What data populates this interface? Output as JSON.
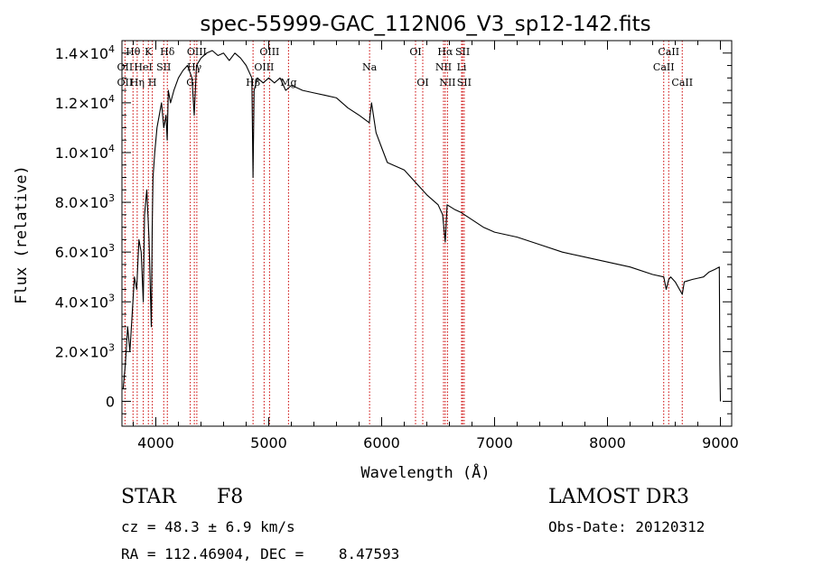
{
  "chart_data": {
    "type": "line",
    "title": "spec-55999-GAC_112N06_V3_sp12-142.fits",
    "xlabel": "Wavelength (Å)",
    "ylabel": "Flux (relative)",
    "xlim": [
      3700,
      9100
    ],
    "ylim": [
      -1000,
      14500
    ],
    "xticks": [
      {
        "value": 4000,
        "label": "4000"
      },
      {
        "value": 5000,
        "label": "5000"
      },
      {
        "value": 6000,
        "label": "6000"
      },
      {
        "value": 7000,
        "label": "7000"
      },
      {
        "value": 8000,
        "label": "8000"
      },
      {
        "value": 9000,
        "label": "9000"
      }
    ],
    "yticks": [
      {
        "value": 0,
        "mantissa": "0",
        "exponent": ""
      },
      {
        "value": 2000,
        "mantissa": "2.0×10",
        "exponent": "3"
      },
      {
        "value": 4000,
        "mantissa": "4.0×10",
        "exponent": "3"
      },
      {
        "value": 6000,
        "mantissa": "6.0×10",
        "exponent": "3"
      },
      {
        "value": 8000,
        "mantissa": "8.0×10",
        "exponent": "3"
      },
      {
        "value": 10000,
        "mantissa": "1.0×10",
        "exponent": "4"
      },
      {
        "value": 12000,
        "mantissa": "1.2×10",
        "exponent": "4"
      },
      {
        "value": 14000,
        "mantissa": "1.4×10",
        "exponent": "4"
      }
    ],
    "series": [
      {
        "name": "spectrum",
        "x": [
          3710,
          3730,
          3750,
          3770,
          3790,
          3810,
          3830,
          3850,
          3870,
          3889,
          3900,
          3920,
          3940,
          3960,
          3968,
          3975,
          3990,
          4010,
          4030,
          4050,
          4070,
          4090,
          4101,
          4110,
          4130,
          4160,
          4200,
          4240,
          4280,
          4320,
          4340,
          4360,
          4400,
          4450,
          4500,
          4550,
          4600,
          4650,
          4700,
          4750,
          4800,
          4850,
          4861,
          4870,
          4900,
          4950,
          5000,
          5050,
          5100,
          5150,
          5200,
          5250,
          5300,
          5400,
          5500,
          5600,
          5700,
          5800,
          5890,
          5910,
          5950,
          6000,
          6050,
          6100,
          6200,
          6300,
          6400,
          6500,
          6540,
          6563,
          6580,
          6650,
          6700,
          6800,
          6900,
          7000,
          7200,
          7400,
          7600,
          7800,
          8000,
          8200,
          8400,
          8498,
          8520,
          8542,
          8560,
          8600,
          8662,
          8680,
          8750,
          8800,
          8850,
          8900,
          8950,
          8990,
          8995,
          9000
        ],
        "y": [
          500,
          1500,
          3000,
          2000,
          3500,
          5000,
          4500,
          6500,
          6000,
          4000,
          7500,
          8500,
          6500,
          3000,
          7000,
          9000,
          10000,
          11000,
          11500,
          12000,
          11000,
          11500,
          10500,
          12500,
          12000,
          12500,
          13000,
          13300,
          13500,
          13000,
          11500,
          13500,
          13800,
          14000,
          14100,
          13900,
          14000,
          13700,
          14000,
          13800,
          13500,
          13000,
          9000,
          12500,
          13000,
          12800,
          13000,
          12800,
          13000,
          12500,
          12700,
          12600,
          12500,
          12400,
          12300,
          12200,
          11800,
          11500,
          11200,
          12000,
          10800,
          10200,
          9600,
          9500,
          9300,
          8800,
          8300,
          7900,
          7500,
          6400,
          7900,
          7700,
          7600,
          7300,
          7000,
          6800,
          6600,
          6300,
          6000,
          5800,
          5600,
          5400,
          5100,
          5000,
          4500,
          4900,
          5000,
          4800,
          4300,
          4800,
          4900,
          4950,
          5000,
          5200,
          5300,
          5400,
          1500,
          0
        ]
      }
    ],
    "line_markers": [
      {
        "label": "Hθ",
        "wavelength": 3798,
        "row": 1
      },
      {
        "label": "OII",
        "wavelength": 3727,
        "row": 2
      },
      {
        "label": "OII",
        "wavelength": 3727,
        "row": 3
      },
      {
        "label": "Hη",
        "wavelength": 3835,
        "row": 3
      },
      {
        "label": "HeI",
        "wavelength": 3889,
        "row": 2
      },
      {
        "label": "K",
        "wavelength": 3934,
        "row": 1
      },
      {
        "label": "SII",
        "wavelength": 4070,
        "row": 2
      },
      {
        "label": "H",
        "wavelength": 3969,
        "row": 3
      },
      {
        "label": "Hδ",
        "wavelength": 4102,
        "row": 1
      },
      {
        "label": "OIII",
        "wavelength": 4363,
        "row": 1
      },
      {
        "label": "Hγ",
        "wavelength": 4341,
        "row": 2
      },
      {
        "label": "G",
        "wavelength": 4305,
        "row": 3
      },
      {
        "label": "OIII",
        "wavelength": 5007,
        "row": 1
      },
      {
        "label": "OIII",
        "wavelength": 4959,
        "row": 2
      },
      {
        "label": "Hβ",
        "wavelength": 4861,
        "row": 3
      },
      {
        "label": "Mg",
        "wavelength": 5175,
        "row": 3
      },
      {
        "label": "Na",
        "wavelength": 5893,
        "row": 2
      },
      {
        "label": "OI",
        "wavelength": 6300,
        "row": 1
      },
      {
        "label": "OI",
        "wavelength": 6364,
        "row": 3
      },
      {
        "label": "Hα",
        "wavelength": 6563,
        "row": 1
      },
      {
        "label": "SII",
        "wavelength": 6717,
        "row": 1
      },
      {
        "label": "NII",
        "wavelength": 6548,
        "row": 2
      },
      {
        "label": "Li",
        "wavelength": 6708,
        "row": 2
      },
      {
        "label": "NII",
        "wavelength": 6583,
        "row": 3
      },
      {
        "label": "SII",
        "wavelength": 6731,
        "row": 3
      },
      {
        "label": "CaII",
        "wavelength": 8542,
        "row": 1
      },
      {
        "label": "CaII",
        "wavelength": 8498,
        "row": 2
      },
      {
        "label": "CaII",
        "wavelength": 8662,
        "row": 3
      }
    ],
    "marker_wavelengths": [
      3727,
      3798,
      3835,
      3889,
      3934,
      3969,
      4070,
      4102,
      4305,
      4341,
      4363,
      4861,
      4959,
      5007,
      5175,
      5893,
      6300,
      6364,
      6548,
      6563,
      6583,
      6708,
      6717,
      6731,
      8498,
      8542,
      8662
    ],
    "colors": {
      "spectrum": "#000000",
      "markers": "#cc0000",
      "axes": "#000000"
    }
  },
  "info": {
    "object_class": "STAR",
    "subclass": "F8",
    "survey": "LAMOST DR3",
    "redshift": "cz = 48.3 ± 6.9 km/s",
    "obs_date": "Obs-Date: 20120312",
    "coords": "RA = 112.46904, DEC =    8.47593"
  }
}
